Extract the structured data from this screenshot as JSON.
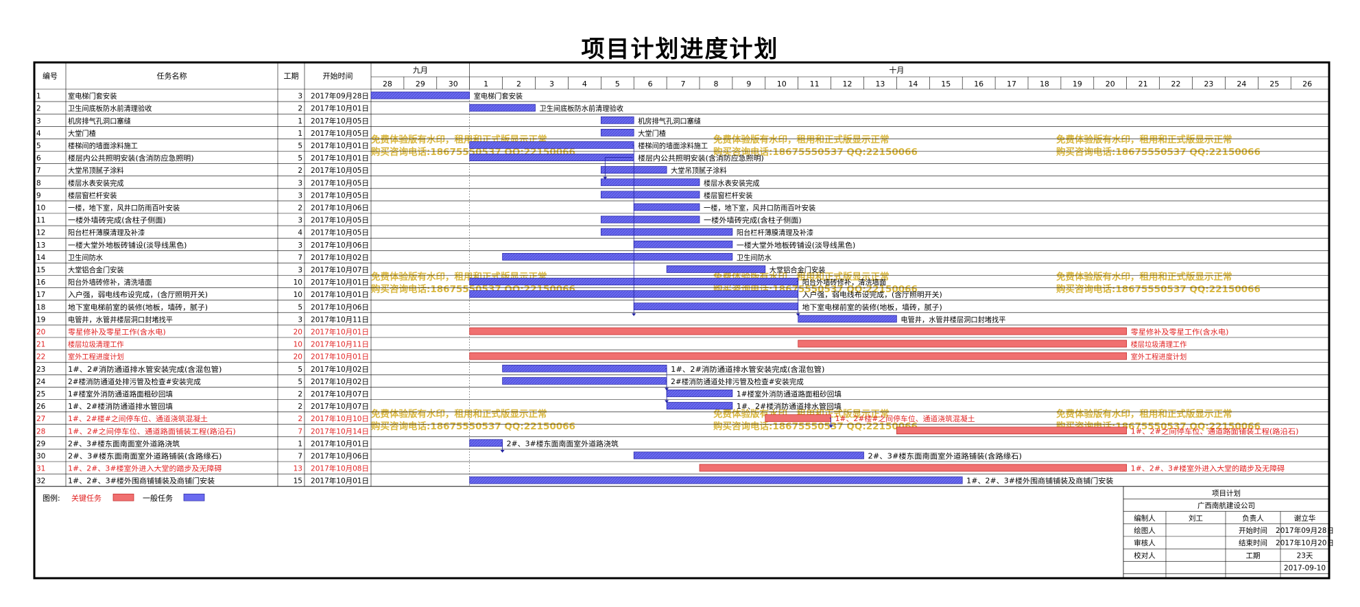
{
  "title": "项目计划进度计划",
  "headers": {
    "num": "编号",
    "name": "任务名称",
    "dur": "工期",
    "start": "开始时间"
  },
  "months": [
    {
      "label": "九月",
      "first": 0,
      "last": 2
    },
    {
      "label": "十月",
      "first": 3,
      "last": 28
    }
  ],
  "days": [
    "28",
    "29",
    "30",
    "1",
    "2",
    "3",
    "4",
    "5",
    "6",
    "7",
    "8",
    "9",
    "10",
    "11",
    "12",
    "13",
    "14",
    "15",
    "16",
    "17",
    "18",
    "19",
    "20",
    "21",
    "22",
    "23",
    "24",
    "25",
    "26"
  ],
  "legend": {
    "label": "图例:",
    "critical": "关键任务",
    "normal": "一般任务"
  },
  "colors": {
    "normal": "#6b6bf0",
    "critical": "#f07070",
    "critical_text": "#e02020",
    "border": "#000000"
  },
  "watermark": {
    "line1": "免费体验版有水印，租用和正式版显示正常",
    "line2": "购买咨询电话:18675550537 QQ:22150066"
  },
  "info": {
    "title": "项目计划",
    "company": "广西南航建设公司",
    "rows": [
      [
        "编制人",
        "刘工",
        "负责人",
        "谢立华"
      ],
      [
        "绘图人",
        "",
        "开始时间",
        "2017年09月28日"
      ],
      [
        "审核人",
        "",
        "结束时间",
        "2017年10月20日"
      ],
      [
        "校对人",
        "",
        "工期",
        "23天"
      ],
      [
        "",
        "",
        "",
        "2017-09-10"
      ]
    ]
  },
  "chart_data": {
    "type": "gantt",
    "title": "项目计划进度计划",
    "timeline_start": "2017-09-28",
    "timeline_end": "2017-10-26",
    "tasks": [
      {
        "id": "1",
        "name": "室电梯门套安装",
        "duration": 3,
        "start": "2017年09月28日",
        "critical": false
      },
      {
        "id": "2",
        "name": "卫生间底板防水前清理验收",
        "duration": 2,
        "start": "2017年10月01日",
        "critical": false
      },
      {
        "id": "3",
        "name": "机房排气孔洞口塞缝",
        "duration": 1,
        "start": "2017年10月05日",
        "critical": false
      },
      {
        "id": "4",
        "name": "大堂门楂",
        "duration": 1,
        "start": "2017年10月05日",
        "critical": false
      },
      {
        "id": "5",
        "name": "楼梯间的墙面涂料施工",
        "duration": 5,
        "start": "2017年10月01日",
        "critical": false
      },
      {
        "id": "6",
        "name": "楼层内公共照明安装(含消防应急照明)",
        "duration": 5,
        "start": "2017年10月01日",
        "critical": false
      },
      {
        "id": "7",
        "name": "大堂吊顶腻子涂料",
        "duration": 2,
        "start": "2017年10月05日",
        "critical": false
      },
      {
        "id": "8",
        "name": "楼层水表安装完成",
        "duration": 3,
        "start": "2017年10月05日",
        "critical": false
      },
      {
        "id": "9",
        "name": "楼层窗栏杆安装",
        "duration": 3,
        "start": "2017年10月05日",
        "critical": false
      },
      {
        "id": "10",
        "name": "一楼，地下室，风井口防雨百叶安装",
        "duration": 2,
        "start": "2017年10月06日",
        "critical": false
      },
      {
        "id": "11",
        "name": "一楼外墙砖完成(含柱子侧面)",
        "duration": 3,
        "start": "2017年10月05日",
        "critical": false
      },
      {
        "id": "12",
        "name": "阳台栏杆薄膜清理及补漆",
        "duration": 4,
        "start": "2017年10月05日",
        "critical": false
      },
      {
        "id": "13",
        "name": "一楼大堂外地板砖铺设(淡导线黑色)",
        "duration": 3,
        "start": "2017年10月06日",
        "critical": false
      },
      {
        "id": "14",
        "name": "卫生间防水",
        "duration": 7,
        "start": "2017年10月02日",
        "critical": false
      },
      {
        "id": "15",
        "name": "大堂铝合金门安装",
        "duration": 3,
        "start": "2017年10月07日",
        "critical": false
      },
      {
        "id": "16",
        "name": "阳台外墙砖修补，清洗墙面",
        "duration": 10,
        "start": "2017年10月01日",
        "critical": false
      },
      {
        "id": "17",
        "name": "入户强，弱电线布设完成，(含厅照明开关)",
        "duration": 10,
        "start": "2017年10月01日",
        "critical": false
      },
      {
        "id": "18",
        "name": "地下室电梯前室的装修(地板，墙砖，腻子)",
        "duration": 5,
        "start": "2017年10月06日",
        "critical": false
      },
      {
        "id": "19",
        "name": "电管井，水管井楼层洞口封堵找平",
        "duration": 3,
        "start": "2017年10月11日",
        "critical": false
      },
      {
        "id": "20",
        "name": "零星修补及零星工作(含水电)",
        "duration": 20,
        "start": "2017年10月01日",
        "critical": true
      },
      {
        "id": "21",
        "name": "楼层垃圾清理工作",
        "duration": 10,
        "start": "2017年10月11日",
        "critical": true
      },
      {
        "id": "22",
        "name": "室外工程进度计划",
        "duration": 20,
        "start": "2017年10月01日",
        "critical": true
      },
      {
        "id": "23",
        "name": "1#、2#消防通道排水管安装完成(含混包管)",
        "duration": 5,
        "start": "2017年10月02日",
        "critical": false
      },
      {
        "id": "24",
        "name": "2#楼消防通道处排污管及检查#安装完成",
        "duration": 5,
        "start": "2017年10月02日",
        "critical": false
      },
      {
        "id": "25",
        "name": "1#楼室外消防通道路面粗砂回填",
        "duration": 2,
        "start": "2017年10月07日",
        "critical": false
      },
      {
        "id": "26",
        "name": "1#、2#楼消防通道排水管回填",
        "duration": 2,
        "start": "2017年10月07日",
        "critical": false
      },
      {
        "id": "27",
        "name": "1#、2#楼#之间停车位、通道浇筑混凝土",
        "duration": 2,
        "start": "2017年10月10日",
        "critical": true
      },
      {
        "id": "28",
        "name": "1#、2#之间停车位、通道路面铺装工程(路沿石)",
        "duration": 7,
        "start": "2017年10月14日",
        "critical": true
      },
      {
        "id": "29",
        "name": "2#、3#楼东面南面室外道路浇筑",
        "duration": 1,
        "start": "2017年10月01日",
        "critical": false
      },
      {
        "id": "30",
        "name": "2#、3#楼东面南面室外道路铺装(含路缘石)",
        "duration": 7,
        "start": "2017年10月06日",
        "critical": false
      },
      {
        "id": "31",
        "name": "1#、2#、3#楼室外进入大堂的踏步及无障碍",
        "duration": 13,
        "start": "2017年10月08日",
        "critical": true
      },
      {
        "id": "32",
        "name": "1#、2#、3#楼外围商铺铺装及商铺门安装",
        "duration": 15,
        "start": "2017年10月01日",
        "critical": false
      }
    ]
  }
}
